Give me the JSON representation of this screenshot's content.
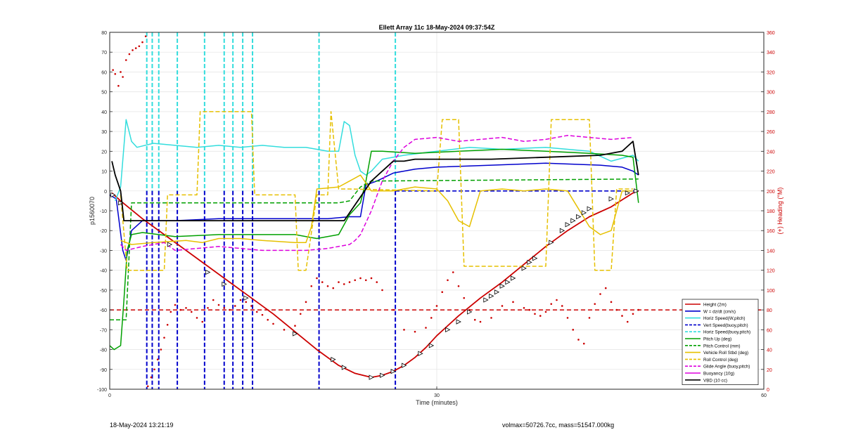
{
  "chart_data": {
    "type": "line",
    "title": "Ellett Array 11c 18-May-2024 09:37:54Z",
    "xlabel": "Time (minutes)",
    "ylabel": "p1560070",
    "y2label": "(+) Heading (°M)",
    "xlim": [
      0,
      60
    ],
    "ylim": [
      -100,
      80
    ],
    "y2lim": [
      0,
      360
    ],
    "xticks": [
      0,
      30,
      60
    ],
    "yticks": [
      -100,
      -90,
      -80,
      -70,
      -60,
      -50,
      -40,
      -30,
      -20,
      -10,
      0,
      10,
      20,
      30,
      40,
      50,
      60,
      70,
      80
    ],
    "y2ticks": [
      0,
      20,
      40,
      60,
      80,
      100,
      120,
      140,
      160,
      180,
      200,
      220,
      240,
      260,
      280,
      300,
      320,
      340,
      360
    ],
    "grid": true,
    "legend_position": "bottom-right",
    "colors": {
      "height": "#cc0000",
      "w": "#0000cc",
      "horiz_speed": "#33dddd",
      "vert_speed_buoy": "#0000cc",
      "horiz_speed_buoy": "#33dddd",
      "pitch_up": "#00a000",
      "pitch_control": "#00a000",
      "vehicle_roll": "#e6c000",
      "roll_control": "#e6c000",
      "glide_angle": "#dd00dd",
      "buoyancy": "#dd00dd",
      "vbd": "#000000",
      "heading": "#cc0000"
    },
    "legend": [
      {
        "key": "height",
        "label": "Height (2m)",
        "dash": false
      },
      {
        "key": "w",
        "label": "W = dz/dt (cm/s)",
        "dash": false
      },
      {
        "key": "horiz_speed",
        "label": "Horiz Speed(W,pitch)",
        "dash": false
      },
      {
        "key": "vert_speed_buoy",
        "label": "Vert Speed(buoy,pitch)",
        "dash": true
      },
      {
        "key": "horiz_speed_buoy",
        "label": "Horiz Speed(buoy,pitch)",
        "dash": true
      },
      {
        "key": "pitch_up",
        "label": "Pitch Up (deg)",
        "dash": false
      },
      {
        "key": "pitch_control",
        "label": "Pitch Control (mm)",
        "dash": true
      },
      {
        "key": "vehicle_roll",
        "label": "Vehicle Roll Stbd (deg)",
        "dash": false
      },
      {
        "key": "roll_control",
        "label": "Roll Control (deg)",
        "dash": true
      },
      {
        "key": "glide_angle",
        "label": "Glide Angle (buoy,pitch)",
        "dash": true
      },
      {
        "key": "buoyancy",
        "label": "Buoyancy (10g)",
        "dash": false
      },
      {
        "key": "vbd",
        "label": "VBD (10 cc)",
        "dash": false
      }
    ],
    "series": [
      {
        "key": "height",
        "axis": "left",
        "x": [
          0.2,
          1,
          3,
          5,
          7,
          9,
          11,
          13,
          15,
          17,
          19,
          21,
          22.5,
          24,
          25,
          26,
          27,
          28,
          29,
          30,
          32,
          34,
          36,
          38,
          40,
          42,
          44,
          46,
          48,
          48.5
        ],
        "y": [
          -1,
          -5,
          -14,
          -22,
          -30,
          -38,
          -46,
          -54,
          -62,
          -71,
          -80,
          -88,
          -92,
          -94,
          -93,
          -91,
          -88,
          -84,
          -79,
          -73,
          -63,
          -54,
          -46,
          -37,
          -28,
          -20,
          -13,
          -8,
          -1,
          0
        ]
      },
      {
        "key": "w",
        "axis": "left",
        "x": [
          0,
          0.6,
          1.2,
          1.5,
          2,
          3,
          6,
          10,
          15,
          20,
          22,
          23,
          23.5,
          24.5,
          26,
          28,
          30,
          35,
          40,
          45,
          47,
          48,
          48.5
        ],
        "y": [
          -2,
          -4,
          -30,
          -35,
          -20,
          -15,
          -15,
          -14,
          -14,
          -14,
          -13,
          -13,
          3,
          5,
          9,
          11,
          12,
          13,
          14,
          13,
          12,
          10,
          8
        ]
      },
      {
        "key": "horiz_speed",
        "axis": "left",
        "x": [
          0.5,
          1,
          1.5,
          2,
          2.5,
          4,
          6,
          8,
          10,
          12,
          14,
          16,
          18,
          19,
          20,
          21,
          21.5,
          22,
          22.5,
          23,
          23.5,
          24,
          25,
          27,
          30,
          33,
          36,
          40,
          44,
          46,
          48,
          48.5
        ],
        "y": [
          -5,
          2,
          36,
          25,
          22,
          24,
          23,
          22,
          23,
          22,
          23,
          22,
          22,
          21,
          20,
          20,
          35,
          33,
          18,
          10,
          8,
          10,
          16,
          18,
          20,
          22,
          21,
          22,
          20,
          15,
          18,
          15
        ]
      },
      {
        "key": "pitch_up",
        "axis": "left",
        "x": [
          0,
          0.4,
          1,
          1.3,
          1.6,
          2,
          3,
          6,
          10,
          14,
          17,
          18,
          19,
          21,
          22,
          23,
          23.5,
          24,
          25,
          28,
          32,
          36,
          40,
          44,
          47,
          48,
          48.5
        ],
        "y": [
          -78,
          -80,
          -78,
          -55,
          -30,
          -22,
          -21,
          -23,
          -22,
          -22,
          -22,
          -23,
          -24,
          -22,
          -12,
          -6,
          5,
          20,
          20,
          19,
          20,
          21,
          20,
          19,
          18,
          17,
          -6
        ]
      },
      {
        "key": "pitch_control",
        "axis": "left",
        "dash": true,
        "x": [
          0,
          1.5,
          2,
          21,
          22,
          23,
          24,
          48.5
        ],
        "y": [
          -65,
          -65,
          -6,
          -6,
          -5,
          2,
          5,
          6
        ]
      },
      {
        "key": "vehicle_roll",
        "axis": "left",
        "x": [
          1,
          2,
          4,
          7,
          8.5,
          10,
          12,
          14,
          17,
          18,
          18.5,
          19,
          21,
          22,
          23,
          24,
          26,
          28,
          30,
          31,
          32,
          33,
          34,
          36,
          38,
          40,
          42,
          44,
          45,
          46,
          47,
          48
        ],
        "y": [
          -25,
          -27,
          -26,
          -25,
          -26,
          -24,
          -24,
          -25,
          -26,
          -26,
          -18,
          1,
          2,
          5,
          8,
          0,
          0,
          2,
          1,
          -5,
          -15,
          -18,
          0,
          1,
          0,
          1,
          0,
          -18,
          -22,
          -20,
          0,
          0
        ]
      },
      {
        "key": "roll_control",
        "axis": "left",
        "dash": true,
        "x": [
          1,
          1.6,
          5,
          5.3,
          8,
          8.3,
          13,
          13.3,
          17,
          17.3,
          18,
          19,
          20,
          20.3,
          21,
          22,
          30,
          30.5,
          32,
          32.5,
          40,
          40.5,
          44,
          44.5,
          46,
          46.5,
          48
        ],
        "y": [
          -2,
          -40,
          -40,
          -2,
          -2,
          40,
          40,
          -2,
          -2,
          -40,
          -40,
          -2,
          -2,
          40,
          1,
          1,
          0,
          36,
          36,
          -38,
          -38,
          36,
          36,
          -40,
          -40,
          1,
          1
        ]
      },
      {
        "key": "glide_angle",
        "axis": "left",
        "dash": true,
        "x": [
          1,
          1.5,
          3,
          5,
          6,
          10,
          14,
          18,
          20,
          21,
          22,
          22.5,
          23,
          24,
          25,
          26,
          27,
          28,
          30,
          32,
          34,
          36,
          38,
          40,
          42,
          44,
          46,
          48
        ],
        "y": [
          -27,
          -30,
          -28,
          -26,
          -30,
          -28,
          -30,
          -30,
          -29,
          -28,
          -27,
          -25,
          -22,
          -10,
          5,
          15,
          22,
          26,
          27,
          25,
          26,
          27,
          25,
          26,
          28,
          27,
          26,
          27
        ]
      },
      {
        "key": "vbd",
        "axis": "left",
        "x": [
          0.2,
          0.5,
          1,
          1.3,
          3,
          10,
          20,
          21.5,
          24,
          26,
          27,
          28,
          30,
          35,
          40,
          45,
          47,
          48,
          48.5
        ],
        "y": [
          15,
          8,
          0,
          -15,
          -15,
          -15,
          -15,
          -15,
          5,
          15,
          15,
          16,
          16,
          16,
          17,
          18,
          20,
          25,
          8
        ]
      }
    ],
    "dashed_verticals": {
      "vert_speed_buoy": [
        3.4,
        3.9,
        4.5,
        6.2,
        8.7,
        10.5,
        11.3,
        12.2,
        13.1,
        19.2,
        26.2
      ],
      "horiz_speed_buoy": [
        3.4,
        3.9,
        4.5,
        6.2,
        8.7,
        10.5,
        11.3,
        12.2,
        13.1,
        19.2,
        26.2
      ]
    },
    "reference_lines": {
      "heading_80": {
        "axis": "right",
        "y": 80,
        "key": "heading"
      }
    },
    "heading_points": {
      "key": "heading",
      "axis": "right",
      "x": [
        0.3,
        0.5,
        0.8,
        1.0,
        1.2,
        1.5,
        1.8,
        2.1,
        2.4,
        2.7,
        3.0,
        3.3,
        3.5,
        3.8,
        4.1,
        4.4,
        4.7,
        5.0,
        5.3,
        5.6,
        6.0,
        6.5,
        7.0,
        7.5,
        8.0,
        8.5,
        9.0,
        9.5,
        10.0,
        10.5,
        11.0,
        11.5,
        12.0,
        12.5,
        13.0,
        13.5,
        14.0,
        14.5,
        15.0,
        16.0,
        17.0,
        17.5,
        18.0,
        18.5,
        19.0,
        19.5,
        20.0,
        20.5,
        21.0,
        21.5,
        22.0,
        22.5,
        23.0,
        23.5,
        24.0,
        24.5,
        25.0,
        26.0,
        27.0,
        28.0,
        29.0,
        29.5,
        30.0,
        30.5,
        31.0,
        31.5,
        32.0,
        32.5,
        33.0,
        33.5,
        34.0,
        35.0,
        36.0,
        37.0,
        38.0,
        38.5,
        39.0,
        39.5,
        40.0,
        40.5,
        41.0,
        41.5,
        42.0,
        42.5,
        43.0,
        43.5,
        44.0,
        44.5,
        45.0,
        45.5,
        46.0,
        46.5,
        47.0,
        47.5,
        48.0,
        48.5
      ],
      "y": [
        322,
        318,
        306,
        320,
        315,
        332,
        338,
        342,
        344,
        346,
        350,
        356,
        3,
        12,
        20,
        30,
        40,
        52,
        65,
        78,
        85,
        80,
        82,
        78,
        72,
        68,
        82,
        90,
        85,
        82,
        80,
        84,
        90,
        88,
        84,
        78,
        75,
        70,
        66,
        60,
        64,
        76,
        88,
        104,
        112,
        108,
        104,
        102,
        108,
        106,
        108,
        110,
        112,
        110,
        112,
        108,
        100,
        80,
        60,
        58,
        62,
        72,
        84,
        98,
        110,
        118,
        104,
        92,
        80,
        70,
        68,
        72,
        84,
        88,
        82,
        80,
        76,
        74,
        78,
        86,
        90,
        84,
        72,
        60,
        50,
        46,
        72,
        86,
        96,
        102,
        88,
        80,
        74,
        68,
        76,
        80
      ]
    },
    "markers": {
      "key": "height",
      "axis": "left",
      "x": [
        0.3,
        1.0,
        5.5,
        9.0,
        10.5,
        12.5,
        17.0,
        20.5,
        21.5,
        24.0,
        25.0,
        26.0,
        27.0,
        28.5,
        29.5,
        31.0,
        32.0,
        33.0,
        34.5,
        35.0,
        35.5,
        36.0,
        36.5,
        37.0,
        38.0,
        38.5,
        39.0,
        40.5,
        41.5,
        42.0,
        42.5,
        43.0,
        43.5,
        44.0,
        46.0,
        47.5,
        48.3
      ],
      "y": [
        -2,
        -6,
        -27,
        -41,
        -47,
        -54,
        -72,
        -85,
        -89,
        -94,
        -93,
        -91,
        -88,
        -82,
        -78,
        -70,
        -66,
        -61,
        -55,
        -53,
        -51,
        -48,
        -46,
        -44,
        -39,
        -36,
        -34,
        -26,
        -20,
        -17,
        -15,
        -13,
        -11,
        -9,
        -4,
        -1,
        0
      ]
    }
  },
  "footer": {
    "left": "18-May-2024 13:21:19",
    "right": "volmax=50726.7cc, mass=51547.000kg"
  }
}
